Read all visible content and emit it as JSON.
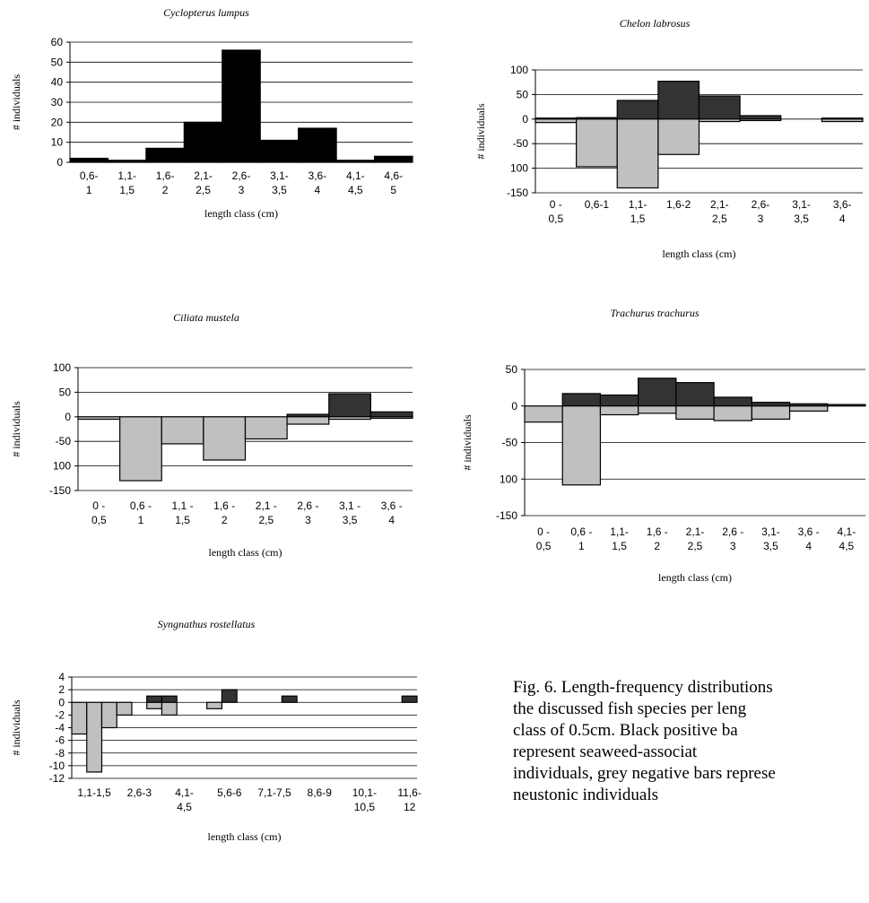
{
  "chart_data": [
    {
      "type": "bar",
      "title": "Cyclopterus lumpus",
      "y_label": "# individuals",
      "x_label": "length class (cm)",
      "categories": [
        "0,6-\n1",
        "1,1-\n1,5",
        "1,6-\n2",
        "2,1-\n2,5",
        "2,6-\n3",
        "3,1-\n3,5",
        "3,6-\n4",
        "4,1-\n4,5",
        "4,6-\n5"
      ],
      "values": [
        2,
        1,
        7,
        20,
        56,
        11,
        17,
        1,
        3
      ],
      "color": "#000000",
      "ylim": [
        0,
        60
      ],
      "yticks": [
        0,
        10,
        20,
        30,
        40,
        50,
        60
      ],
      "grid": true
    },
    {
      "type": "bar",
      "title": "Chelon labrosus",
      "y_label": "# individuals",
      "x_label": "length class (cm)",
      "categories": [
        "0 -\n0,5",
        "0,6-1",
        "1,1-\n1,5",
        "1,6-2",
        "2,1-\n2,5",
        "2,6-\n3",
        "3,1-\n3,5",
        "3,6-\n4"
      ],
      "series": [
        {
          "color": "#333333",
          "values": [
            2,
            3,
            38,
            77,
            47,
            7,
            0,
            2
          ]
        },
        {
          "color": "#c0c0c0",
          "values": [
            -7,
            -97,
            -140,
            -72,
            -5,
            -3,
            0,
            -5
          ]
        }
      ],
      "ylim": [
        -150,
        100
      ],
      "yticks": [
        -150,
        {
          "value": -100,
          "label": "100"
        },
        -50,
        0,
        50,
        100
      ],
      "grid": true
    },
    {
      "type": "bar",
      "title": "Ciliata mustela",
      "y_label": "# individuals",
      "x_label": "length class (cm)",
      "categories": [
        "0 -\n0,5",
        "0,6 -\n1",
        "1,1 -\n1,5",
        "1,6 -\n2",
        "2,1 -\n2,5",
        "2,6 -\n3",
        "3,1 -\n3,5",
        "3,6 -\n4"
      ],
      "series": [
        {
          "color": "#333333",
          "values": [
            0,
            0,
            0,
            0,
            0,
            5,
            47,
            10
          ]
        },
        {
          "color": "#c0c0c0",
          "values": [
            -5,
            -130,
            -55,
            -88,
            -45,
            -15,
            -5,
            -3
          ]
        }
      ],
      "ylim": [
        -150,
        100
      ],
      "yticks": [
        -150,
        {
          "value": -100,
          "label": "100"
        },
        -50,
        0,
        50,
        100
      ],
      "grid": true
    },
    {
      "type": "bar",
      "title": "Trachurus trachurus",
      "y_label": "# individuals",
      "x_label": "length class (cm)",
      "categories": [
        "0 -\n0,5",
        "0,6 -\n1",
        "1,1-\n1,5",
        "1,6 -\n2",
        "2,1-\n2,5",
        "2,6 -\n3",
        "3,1-\n3,5",
        "3,6 -\n4",
        "4,1-\n4,5"
      ],
      "series": [
        {
          "color": "#333333",
          "values": [
            0,
            17,
            15,
            38,
            32,
            12,
            5,
            3,
            2
          ]
        },
        {
          "color": "#c0c0c0",
          "values": [
            -22,
            -108,
            -12,
            -10,
            -18,
            -20,
            -18,
            -7,
            0
          ]
        }
      ],
      "ylim": [
        -150,
        50
      ],
      "yticks": [
        -150,
        {
          "value": -100,
          "label": "100"
        },
        -50,
        0,
        50
      ],
      "grid": true
    },
    {
      "type": "bar",
      "title": "Syngnathus rostellatus",
      "y_label": "# individuals",
      "x_label": "length class (cm)",
      "categories": [
        null,
        "1,1-1,5",
        null,
        null,
        "2,6-3",
        null,
        null,
        "4,1-\n4,5",
        null,
        null,
        "5,6-6",
        null,
        null,
        "7,1-7,5",
        null,
        null,
        "8,6-9",
        null,
        null,
        "10,1-\n10,5",
        null,
        null,
        "11,6-\n12"
      ],
      "series": [
        {
          "color": "#333333",
          "values": [
            0,
            0,
            0,
            0,
            0,
            1,
            1,
            0,
            0,
            0,
            2,
            0,
            0,
            0,
            1,
            0,
            0,
            0,
            0,
            0,
            0,
            0,
            1
          ]
        },
        {
          "color": "#c0c0c0",
          "values": [
            -5,
            -11,
            -4,
            -2,
            0,
            -1,
            -2,
            0,
            0,
            -1,
            0,
            0,
            0,
            0,
            0,
            0,
            0,
            0,
            0,
            0,
            0,
            0,
            0
          ]
        }
      ],
      "ylim": [
        -12,
        4
      ],
      "yticks": [
        -12,
        -10,
        -8,
        -6,
        -4,
        -2,
        0,
        2,
        4
      ],
      "grid": true
    }
  ],
  "caption": [
    "Fig. 6. Length-frequency distributions",
    "the discussed fish species per leng",
    "class of 0.5cm. Black positive ba",
    "represent seaweed-associat",
    "individuals, grey negative bars represe",
    "neustonic individuals"
  ]
}
